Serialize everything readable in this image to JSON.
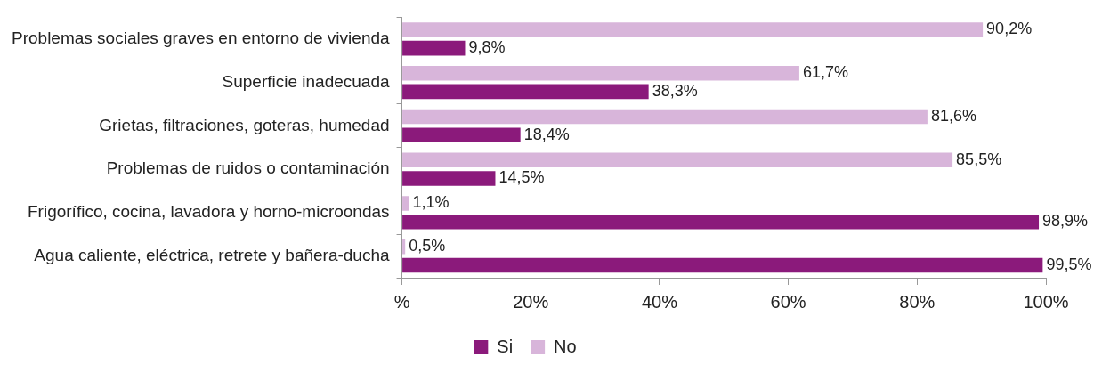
{
  "chart_data": {
    "type": "bar",
    "orientation": "horizontal",
    "categories": [
      "Problemas sociales graves en entorno de vivienda",
      "Superficie inadecuada",
      "Grietas, filtraciones, goteras, humedad",
      "Problemas de ruidos o contaminación",
      "Frigorífico, cocina, lavadora y horno-microondas",
      "Agua caliente, eléctrica, retrete y bañera-ducha"
    ],
    "series": [
      {
        "name": "Si",
        "color": "#8b1a7b",
        "values": [
          9.8,
          38.3,
          18.4,
          14.5,
          98.9,
          99.5
        ],
        "value_labels": [
          "9,8%",
          "38,3%",
          "18,4%",
          "14,5%",
          "98,9%",
          "99,5%"
        ]
      },
      {
        "name": "No",
        "color": "#d8b5da",
        "values": [
          90.2,
          61.7,
          81.6,
          85.5,
          1.1,
          0.5
        ],
        "value_labels": [
          "90,2%",
          "61,7%",
          "81,6%",
          "85,5%",
          "1,1%",
          "0,5%"
        ]
      }
    ],
    "xlim": [
      0,
      100
    ],
    "xticks": [
      {
        "value": 0,
        "label": "%"
      },
      {
        "value": 20,
        "label": "20%"
      },
      {
        "value": 40,
        "label": "40%"
      },
      {
        "value": 60,
        "label": "60%"
      },
      {
        "value": 80,
        "label": "80%"
      },
      {
        "value": 100,
        "label": "100%"
      }
    ],
    "grid": false,
    "legend": "bottom"
  }
}
